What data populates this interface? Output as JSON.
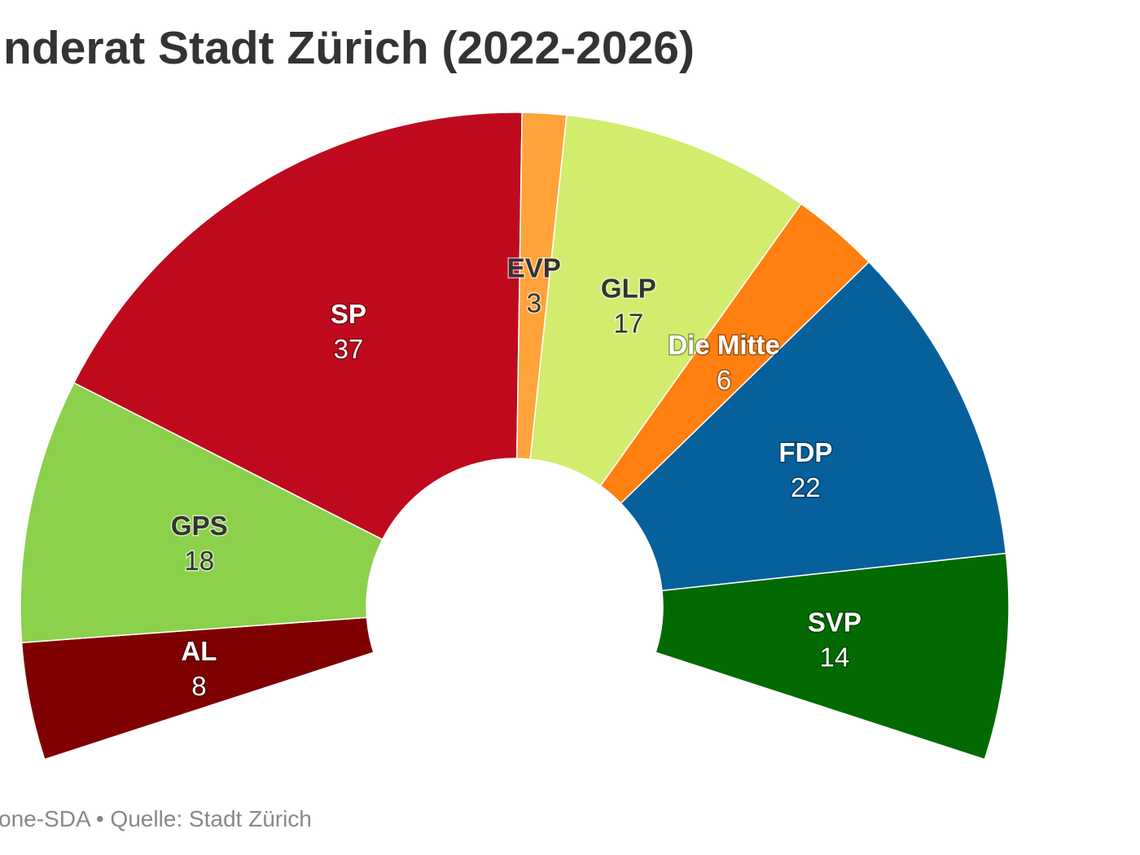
{
  "chart_data": {
    "type": "pie",
    "variant": "semicircle-parliament",
    "title": "nderat Stadt Zürich (2022-2026)",
    "source": "one-SDA • Quelle: Stadt Zürich",
    "total": 125,
    "slices": [
      {
        "label": "AL",
        "value": 8,
        "color": "#7f0000",
        "text_color": "#ffffff"
      },
      {
        "label": "GPS",
        "value": 18,
        "color": "#8bd14b",
        "text_color": "#333333"
      },
      {
        "label": "SP",
        "value": 37,
        "color": "#bf0a1e",
        "text_color": "#ffffff"
      },
      {
        "label": "EVP",
        "value": 3,
        "color": "#ffa33a",
        "text_color": "#333333"
      },
      {
        "label": "GLP",
        "value": 17,
        "color": "#d2ec6e",
        "text_color": "#333333"
      },
      {
        "label": "Die Mitte",
        "value": 6,
        "color": "#ff7f11",
        "text_color": "#ffffff"
      },
      {
        "label": "FDP",
        "value": 22,
        "color": "#06609c",
        "text_color": "#ffffff"
      },
      {
        "label": "SVP",
        "value": 14,
        "color": "#026a00",
        "text_color": "#ffffff"
      }
    ]
  }
}
